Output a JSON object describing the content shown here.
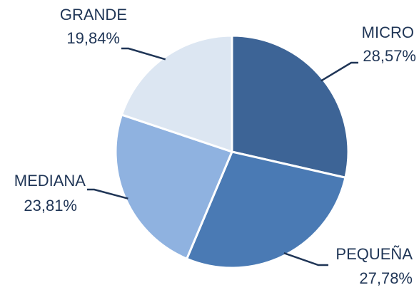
{
  "chart_data": {
    "type": "pie",
    "categories": [
      "MICRO",
      "PEQUEÑA",
      "MEDIANA",
      "GRANDE"
    ],
    "values": [
      28.57,
      27.78,
      23.81,
      19.84
    ],
    "value_labels": [
      "28,57%",
      "27,78%",
      "23,81%",
      "19,84%"
    ],
    "colors": [
      "#3d6496",
      "#4a7ab4",
      "#8fb2e0",
      "#dce6f2"
    ],
    "start_angle": 0,
    "direction": "clockwise"
  }
}
